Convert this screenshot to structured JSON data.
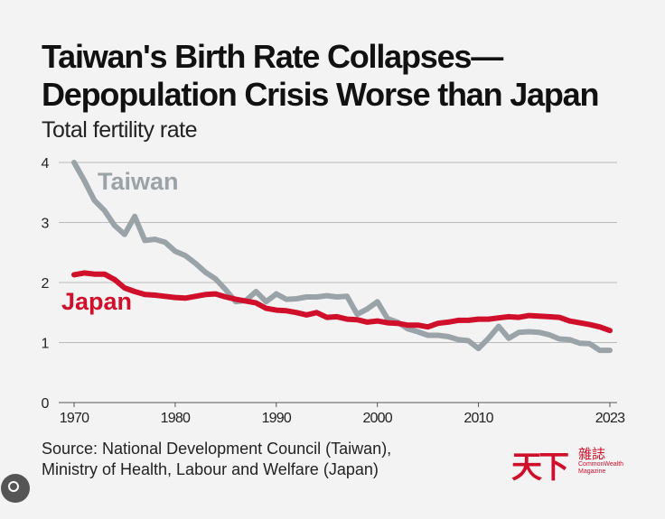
{
  "chart_data": {
    "type": "line",
    "title": "Taiwan's Birth Rate Collapses—Depopulation Crisis Worse than Japan",
    "subtitle": "Total fertility rate",
    "source": [
      "Source: National Development Council (Taiwan),",
      "Ministry of Health, Labour and Welfare (Japan)"
    ],
    "logo": {
      "name": "天下",
      "magazine": "雜誌",
      "english": "CommonWealth Magazine"
    },
    "x": [
      1970,
      1971,
      1972,
      1973,
      1974,
      1975,
      1976,
      1977,
      1978,
      1979,
      1980,
      1981,
      1982,
      1983,
      1984,
      1985,
      1986,
      1987,
      1988,
      1989,
      1990,
      1991,
      1992,
      1993,
      1994,
      1995,
      1996,
      1997,
      1998,
      1999,
      2000,
      2001,
      2002,
      2003,
      2004,
      2005,
      2006,
      2007,
      2008,
      2009,
      2010,
      2011,
      2012,
      2013,
      2014,
      2015,
      2016,
      2017,
      2018,
      2019,
      2020,
      2021,
      2022,
      2023
    ],
    "series": [
      {
        "name": "Taiwan",
        "color": "#9aa3a8",
        "values": [
          4.0,
          3.7,
          3.37,
          3.2,
          2.95,
          2.8,
          3.1,
          2.7,
          2.72,
          2.67,
          2.52,
          2.45,
          2.32,
          2.17,
          2.06,
          1.88,
          1.68,
          1.7,
          1.85,
          1.68,
          1.81,
          1.72,
          1.73,
          1.76,
          1.76,
          1.78,
          1.76,
          1.77,
          1.47,
          1.56,
          1.68,
          1.4,
          1.34,
          1.23,
          1.18,
          1.12,
          1.12,
          1.1,
          1.05,
          1.03,
          0.9,
          1.07,
          1.27,
          1.07,
          1.17,
          1.18,
          1.17,
          1.13,
          1.06,
          1.05,
          0.99,
          0.98,
          0.87,
          0.87
        ]
      },
      {
        "name": "Japan",
        "color": "#d0102b",
        "values": [
          2.13,
          2.16,
          2.14,
          2.14,
          2.05,
          1.91,
          1.85,
          1.8,
          1.79,
          1.77,
          1.75,
          1.74,
          1.77,
          1.8,
          1.81,
          1.76,
          1.72,
          1.69,
          1.66,
          1.57,
          1.54,
          1.53,
          1.5,
          1.46,
          1.5,
          1.42,
          1.43,
          1.39,
          1.38,
          1.34,
          1.36,
          1.33,
          1.32,
          1.29,
          1.29,
          1.26,
          1.32,
          1.34,
          1.37,
          1.37,
          1.39,
          1.39,
          1.41,
          1.43,
          1.42,
          1.45,
          1.44,
          1.43,
          1.42,
          1.36,
          1.33,
          1.3,
          1.26,
          1.2
        ]
      }
    ],
    "xlim": [
      1970,
      2023
    ],
    "xticks": [
      1970,
      1980,
      1990,
      2000,
      2010,
      2023
    ],
    "ylim": [
      0,
      4
    ],
    "yticks": [
      0,
      1,
      2,
      3,
      4
    ],
    "grid": true
  }
}
